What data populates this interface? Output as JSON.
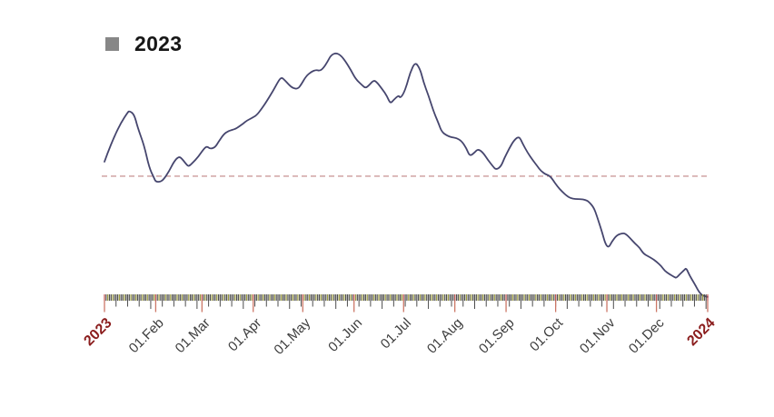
{
  "legend": {
    "label": "2023",
    "swatch_color": "#878787"
  },
  "colors": {
    "line": "#46466e",
    "baseline": "#c08585",
    "band_dark": "#4e4e4e",
    "band_olive": "#99993c",
    "band_red": "#c0504d",
    "tick_week": "#4d4d4d",
    "tick_month": "#cc7766",
    "year_label": "#8b1e1e",
    "month_label": "#3d3d3d"
  },
  "chart_data": {
    "type": "line",
    "title": "",
    "xlabel": "",
    "ylabel": "",
    "x_axis": {
      "unit": "day of year 2023",
      "range_days": [
        0,
        365
      ],
      "tick_labels": [
        {
          "label": "2023",
          "day": 0,
          "type": "year"
        },
        {
          "label": "01.Feb",
          "day": 31,
          "type": "month"
        },
        {
          "label": "01.Mar",
          "day": 59,
          "type": "month"
        },
        {
          "label": "01.Apr",
          "day": 90,
          "type": "month"
        },
        {
          "label": "01.May",
          "day": 120,
          "type": "month"
        },
        {
          "label": "01.Jun",
          "day": 151,
          "type": "month"
        },
        {
          "label": "01.Jul",
          "day": 181,
          "type": "month"
        },
        {
          "label": "01.Aug",
          "day": 212,
          "type": "month"
        },
        {
          "label": "01.Sep",
          "day": 243,
          "type": "month"
        },
        {
          "label": "01.Oct",
          "day": 273,
          "type": "month"
        },
        {
          "label": "01.Nov",
          "day": 304,
          "type": "month"
        },
        {
          "label": "01.Dec",
          "day": 334,
          "type": "month"
        },
        {
          "label": "2024",
          "day": 365,
          "type": "year"
        }
      ]
    },
    "y_axis": {
      "visible": false,
      "range": [
        0,
        100
      ]
    },
    "baseline": {
      "value": 48.6,
      "style": "dashed"
    },
    "series": [
      {
        "name": "2023",
        "points": [
          [
            0,
            54.3
          ],
          [
            2,
            57.9
          ],
          [
            6,
            64.3
          ],
          [
            10,
            69.6
          ],
          [
            14,
            73.6
          ],
          [
            15,
            74.3
          ],
          [
            18,
            72.9
          ],
          [
            20,
            67.9
          ],
          [
            24,
            60.7
          ],
          [
            27,
            52.1
          ],
          [
            30,
            47.9
          ],
          [
            31,
            46.4
          ],
          [
            34,
            46.4
          ],
          [
            36,
            47.5
          ],
          [
            39,
            50.4
          ],
          [
            42,
            54.3
          ],
          [
            45,
            56.4
          ],
          [
            47,
            55.4
          ],
          [
            50,
            52.9
          ],
          [
            51,
            52.5
          ],
          [
            53,
            53.6
          ],
          [
            57,
            56.4
          ],
          [
            60,
            59.3
          ],
          [
            62,
            60.4
          ],
          [
            64,
            59.3
          ],
          [
            67,
            60.0
          ],
          [
            69,
            62.1
          ],
          [
            72,
            65.0
          ],
          [
            75,
            66.4
          ],
          [
            79,
            67.1
          ],
          [
            81,
            67.9
          ],
          [
            84,
            69.3
          ],
          [
            86,
            70.4
          ],
          [
            89,
            71.4
          ],
          [
            92,
            72.5
          ],
          [
            95,
            75.0
          ],
          [
            98,
            77.9
          ],
          [
            102,
            82.1
          ],
          [
            105,
            85.7
          ],
          [
            107,
            87.5
          ],
          [
            109,
            86.4
          ],
          [
            112,
            84.3
          ],
          [
            114,
            83.2
          ],
          [
            117,
            82.9
          ],
          [
            119,
            84.6
          ],
          [
            122,
            87.9
          ],
          [
            125,
            89.6
          ],
          [
            128,
            90.4
          ],
          [
            130,
            90.0
          ],
          [
            132,
            90.7
          ],
          [
            135,
            93.6
          ],
          [
            137,
            96.1
          ],
          [
            140,
            97.1
          ],
          [
            143,
            96.1
          ],
          [
            146,
            93.6
          ],
          [
            149,
            90.4
          ],
          [
            152,
            86.8
          ],
          [
            156,
            84.3
          ],
          [
            158,
            83.2
          ],
          [
            160,
            84.3
          ],
          [
            163,
            86.4
          ],
          [
            165,
            85.4
          ],
          [
            168,
            82.9
          ],
          [
            171,
            80.0
          ],
          [
            173,
            77.1
          ],
          [
            175,
            78.6
          ],
          [
            178,
            80.4
          ],
          [
            179,
            79.3
          ],
          [
            181,
            81.1
          ],
          [
            183,
            84.6
          ],
          [
            185,
            89.3
          ],
          [
            188,
            93.6
          ],
          [
            191,
            90.7
          ],
          [
            193,
            85.7
          ],
          [
            196,
            80.4
          ],
          [
            199,
            74.3
          ],
          [
            202,
            69.6
          ],
          [
            204,
            66.1
          ],
          [
            207,
            64.6
          ],
          [
            210,
            63.9
          ],
          [
            213,
            63.6
          ],
          [
            216,
            62.5
          ],
          [
            219,
            59.6
          ],
          [
            221,
            56.4
          ],
          [
            224,
            57.9
          ],
          [
            226,
            59.3
          ],
          [
            229,
            57.9
          ],
          [
            232,
            55.0
          ],
          [
            235,
            52.5
          ],
          [
            237,
            51.1
          ],
          [
            240,
            52.5
          ],
          [
            242,
            55.7
          ],
          [
            245,
            59.6
          ],
          [
            248,
            62.9
          ],
          [
            251,
            64.3
          ],
          [
            253,
            61.4
          ],
          [
            256,
            57.9
          ],
          [
            259,
            55.0
          ],
          [
            262,
            52.5
          ],
          [
            264,
            50.7
          ],
          [
            267,
            49.3
          ],
          [
            269,
            48.9
          ],
          [
            271,
            47.5
          ],
          [
            274,
            44.6
          ],
          [
            277,
            42.5
          ],
          [
            280,
            40.7
          ],
          [
            282,
            40.0
          ],
          [
            285,
            39.6
          ],
          [
            288,
            39.6
          ],
          [
            291,
            39.3
          ],
          [
            293,
            38.6
          ],
          [
            296,
            36.4
          ],
          [
            298,
            32.9
          ],
          [
            301,
            26.8
          ],
          [
            303,
            22.1
          ],
          [
            305,
            20.4
          ],
          [
            307,
            22.9
          ],
          [
            310,
            25.4
          ],
          [
            313,
            26.1
          ],
          [
            315,
            26.1
          ],
          [
            318,
            24.3
          ],
          [
            321,
            22.1
          ],
          [
            324,
            20.4
          ],
          [
            326,
            18.2
          ],
          [
            329,
            17.1
          ],
          [
            331,
            16.4
          ],
          [
            334,
            15.0
          ],
          [
            337,
            13.2
          ],
          [
            339,
            11.4
          ],
          [
            342,
            10.0
          ],
          [
            345,
            8.9
          ],
          [
            346,
            8.6
          ],
          [
            348,
            10.0
          ],
          [
            351,
            11.8
          ],
          [
            352,
            12.5
          ],
          [
            354,
            9.6
          ],
          [
            357,
            6.4
          ],
          [
            359,
            3.9
          ],
          [
            361,
            2.1
          ],
          [
            363,
            1.4
          ],
          [
            365,
            1.1
          ]
        ]
      }
    ]
  }
}
